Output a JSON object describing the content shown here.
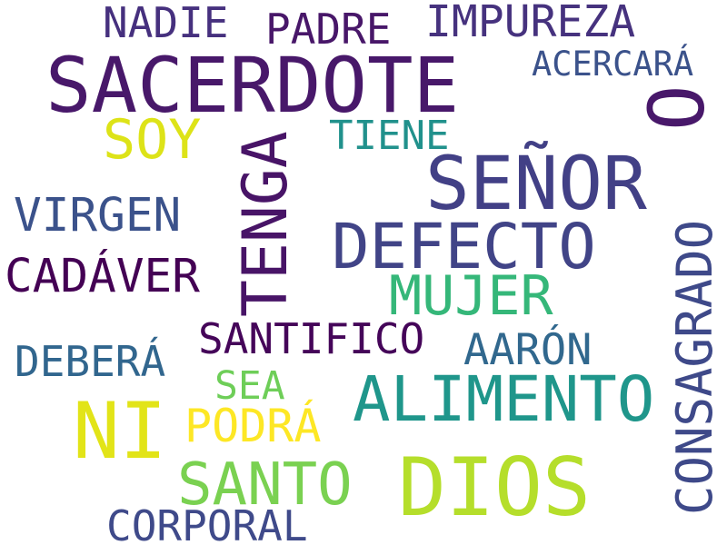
{
  "words": {
    "sacerdote": {
      "text": "SACERDOTE",
      "color": "#48186a"
    },
    "senor": {
      "text": "SEÑOR",
      "color": "#424086"
    },
    "dios": {
      "text": "DIOS",
      "color": "#b5de2b"
    },
    "ni": {
      "text": "NI",
      "color": "#e2e418"
    },
    "tenga": {
      "text": "TENGA",
      "color": "#481467"
    },
    "defecto": {
      "text": "DEFECTO",
      "color": "#414487"
    },
    "alimento": {
      "text": "ALIMENTO",
      "color": "#1f968b"
    },
    "o": {
      "text": "O",
      "color": "#48186a"
    },
    "consagrado": {
      "text": "CONSAGRADO",
      "color": "#3e4989"
    },
    "impureza": {
      "text": "IMPUREZA",
      "color": "#46327e"
    },
    "mujer": {
      "text": "MUJER",
      "color": "#35b779"
    },
    "santo": {
      "text": "SANTO",
      "color": "#7ad151"
    },
    "soy": {
      "text": "SOY",
      "color": "#dde318"
    },
    "cadaver": {
      "text": "CADÁVER",
      "color": "#440154"
    },
    "santifico": {
      "text": "SANTIFICO",
      "color": "#450559"
    },
    "padre": {
      "text": "PADRE",
      "color": "#481769"
    },
    "nadie": {
      "text": "NADIE",
      "color": "#46307e"
    },
    "virgen": {
      "text": "VIRGEN",
      "color": "#3b528b"
    },
    "debera": {
      "text": "DEBERÁ",
      "color": "#31668e"
    },
    "aaron": {
      "text": "AARÓN",
      "color": "#31688e"
    },
    "podra": {
      "text": "PODRÁ",
      "color": "#fde725"
    },
    "corporal": {
      "text": "CORPORAL",
      "color": "#3f4a8a"
    },
    "tiene": {
      "text": "TIENE",
      "color": "#21918c"
    },
    "acercara": {
      "text": "ACERCARÁ",
      "color": "#3b528b"
    },
    "sea": {
      "text": "SEA",
      "color": "#6ece58"
    }
  }
}
